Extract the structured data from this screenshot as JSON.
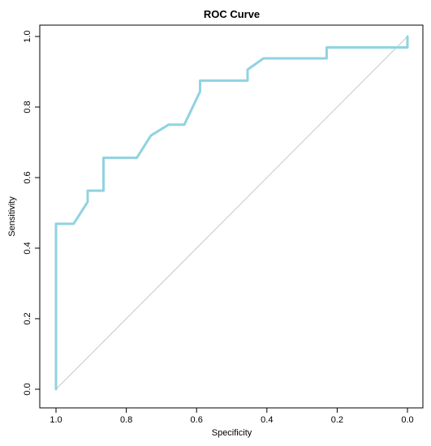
{
  "chart_data": {
    "type": "line",
    "title": "ROC Curve",
    "xlabel": "Specificity",
    "ylabel": "Sensitivity",
    "xlim": [
      1.0,
      0.0
    ],
    "ylim": [
      0.0,
      1.0
    ],
    "x_reversed": true,
    "grid": false,
    "x_ticks": [
      "1.0",
      "0.8",
      "0.6",
      "0.4",
      "0.2",
      "0.0"
    ],
    "y_ticks": [
      "0.0",
      "0.2",
      "0.4",
      "0.6",
      "0.8",
      "1.0"
    ],
    "series": [
      {
        "color": "#8fd3e0",
        "points": [
          [
            1.0,
            0.0
          ],
          [
            1.0,
            0.469
          ],
          [
            0.95,
            0.469
          ],
          [
            0.91,
            0.531
          ],
          [
            0.91,
            0.563
          ],
          [
            0.865,
            0.563
          ],
          [
            0.865,
            0.656
          ],
          [
            0.77,
            0.656
          ],
          [
            0.73,
            0.719
          ],
          [
            0.68,
            0.75
          ],
          [
            0.635,
            0.75
          ],
          [
            0.59,
            0.844
          ],
          [
            0.59,
            0.875
          ],
          [
            0.455,
            0.875
          ],
          [
            0.455,
            0.906
          ],
          [
            0.41,
            0.938
          ],
          [
            0.23,
            0.938
          ],
          [
            0.23,
            0.969
          ],
          [
            0.0,
            0.969
          ],
          [
            0.0,
            1.0
          ]
        ]
      }
    ],
    "reference_line": {
      "color": "#c8c8c8",
      "points": [
        [
          1.0,
          0.0
        ],
        [
          0.0,
          1.0
        ]
      ]
    }
  }
}
